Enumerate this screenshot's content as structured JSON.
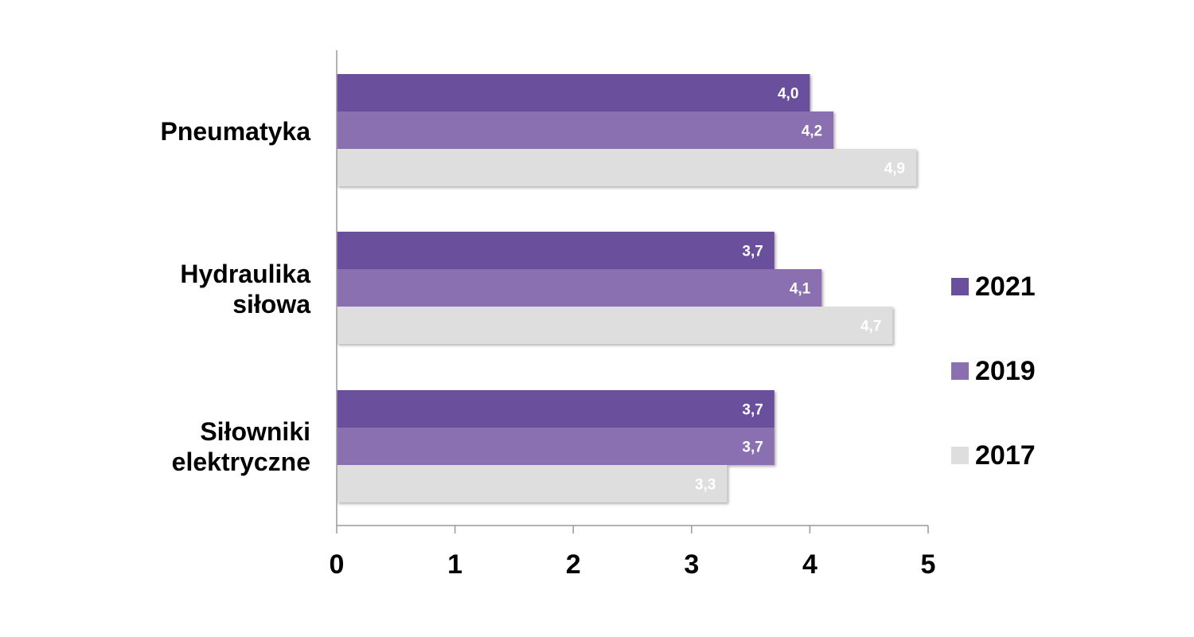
{
  "chart_data": {
    "type": "bar",
    "orientation": "horizontal",
    "categories": [
      "Pneumatyka",
      "Hydraulika\nsiłowa",
      "Siłowniki\nelektryczne"
    ],
    "series": [
      {
        "name": "2021",
        "color": "#6a4f9c",
        "values": [
          4.0,
          3.7,
          3.7
        ],
        "labels": [
          "4,0",
          "3,7",
          "3,7"
        ]
      },
      {
        "name": "2019",
        "color": "#8a70b0",
        "values": [
          4.2,
          4.1,
          3.7
        ],
        "labels": [
          "4,2",
          "4,1",
          "3,7"
        ]
      },
      {
        "name": "2017",
        "color": "#dedede",
        "values": [
          4.9,
          4.7,
          3.3
        ],
        "labels": [
          "4,9",
          "4,7",
          "3,3"
        ]
      }
    ],
    "xlim": [
      0,
      5
    ],
    "xticks": [
      "0",
      "1",
      "2",
      "3",
      "4",
      "5"
    ],
    "grid": false,
    "legend_position": "right"
  }
}
